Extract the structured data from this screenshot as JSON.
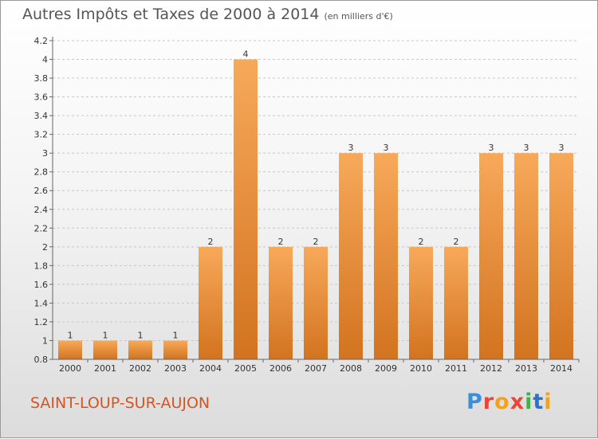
{
  "header": {
    "title": "Autres Impôts et Taxes de 2000 à 2014",
    "unit": "(en milliers d'€)"
  },
  "footer": {
    "town": "SAINT-LOUP-SUR-AUJON",
    "logo_letters": [
      "P",
      "r",
      "o",
      "x",
      "i",
      "t",
      "i"
    ],
    "logo_colors": [
      "#3c8fd6",
      "#e8463a",
      "#f2a21b",
      "#e8463a",
      "#43b04a",
      "#2b73c9",
      "#f2a21b"
    ]
  },
  "colors": {
    "bar_light": "#f7a95a",
    "bar_dark": "#d2731f",
    "axis": "#666666",
    "grid": "#c8c8c8",
    "title": "#555555",
    "town": "#d6541f"
  },
  "chart_data": {
    "type": "bar",
    "title": "Autres Impôts et Taxes de 2000 à 2014",
    "subtitle": "(en milliers d'€)",
    "xlabel": "",
    "ylabel": "",
    "categories": [
      "2000",
      "2001",
      "2002",
      "2003",
      "2004",
      "2005",
      "2006",
      "2007",
      "2008",
      "2009",
      "2010",
      "2011",
      "2012",
      "2013",
      "2014"
    ],
    "values": [
      1,
      1,
      1,
      1,
      2,
      4,
      2,
      2,
      3,
      3,
      2,
      2,
      3,
      3,
      3
    ],
    "ylim": [
      0.8,
      4.2
    ],
    "yticks": [
      "0.8",
      "1",
      "1.2",
      "1.4",
      "1.6",
      "1.8",
      "2",
      "2.2",
      "2.4",
      "2.6",
      "2.8",
      "3",
      "3.2",
      "3.4",
      "3.6",
      "3.8",
      "4",
      "4.2"
    ],
    "grid": "horizontal dashed",
    "data_labels": true
  }
}
